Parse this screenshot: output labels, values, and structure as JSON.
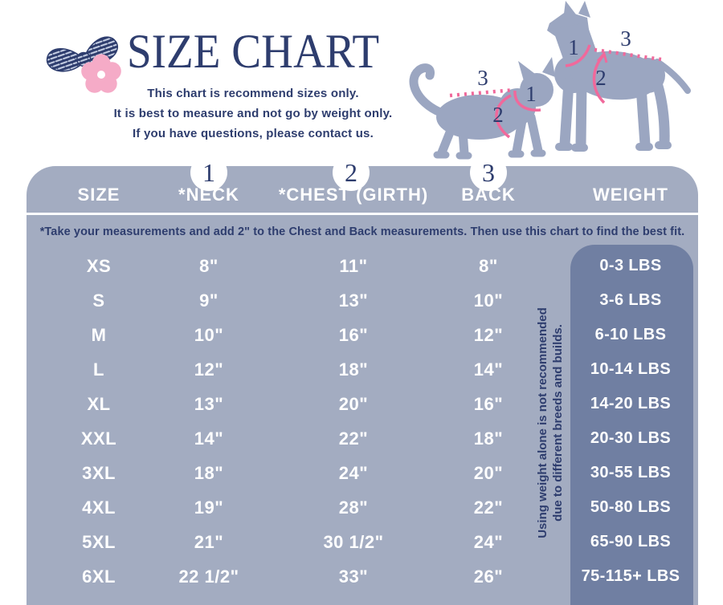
{
  "header": {
    "subtitle_lines": [
      "This chart is recommend sizes only.",
      "It is best to measure and not go by weight only.",
      "If you have questions, please contact us."
    ]
  },
  "diagram": {
    "markers": {
      "neck": "1",
      "chest": "2",
      "back": "3"
    }
  },
  "table": {
    "badges": [
      "1",
      "2",
      "3"
    ],
    "note": "*Take your measurements and add 2\" to the Chest and Back measurements. Then use this chart to find the best fit.",
    "weight_note_lines": [
      "Using weight alone is not recommended",
      "due to different breeds and builds."
    ]
  },
  "chart_data": {
    "type": "table",
    "title": "SIZE CHART",
    "columns": [
      "SIZE",
      "*NECK",
      "*CHEST (GIRTH)",
      "BACK",
      "WEIGHT"
    ],
    "rows": [
      {
        "size": "XS",
        "neck": "8\"",
        "chest": "11\"",
        "back": "8\"",
        "weight": "0-3 LBS"
      },
      {
        "size": "S",
        "neck": "9\"",
        "chest": "13\"",
        "back": "10\"",
        "weight": "3-6 LBS"
      },
      {
        "size": "M",
        "neck": "10\"",
        "chest": "16\"",
        "back": "12\"",
        "weight": "6-10 LBS"
      },
      {
        "size": "L",
        "neck": "12\"",
        "chest": "18\"",
        "back": "14\"",
        "weight": "10-14 LBS"
      },
      {
        "size": "XL",
        "neck": "13\"",
        "chest": "20\"",
        "back": "16\"",
        "weight": "14-20 LBS"
      },
      {
        "size": "XXL",
        "neck": "14\"",
        "chest": "22\"",
        "back": "18\"",
        "weight": "20-30 LBS"
      },
      {
        "size": "3XL",
        "neck": "18\"",
        "chest": "24\"",
        "back": "20\"",
        "weight": "30-55 LBS"
      },
      {
        "size": "4XL",
        "neck": "19\"",
        "chest": "28\"",
        "back": "22\"",
        "weight": "50-80 LBS"
      },
      {
        "size": "5XL",
        "neck": "21\"",
        "chest": "30 1/2\"",
        "back": "24\"",
        "weight": "65-90 LBS"
      },
      {
        "size": "6XL",
        "neck": "22 1/2\"",
        "chest": "33\"",
        "back": "26\"",
        "weight": "75-115+ LBS"
      }
    ],
    "colors": {
      "navy": "#2e3d6e",
      "table_background": "#a3acc1",
      "weight_column_background": "#707fa2",
      "silhouette": "#9ba6c1",
      "pink_line": "#f0699b",
      "pink_flower": "#f5abc7",
      "text_on_table": "#ffffff"
    }
  }
}
